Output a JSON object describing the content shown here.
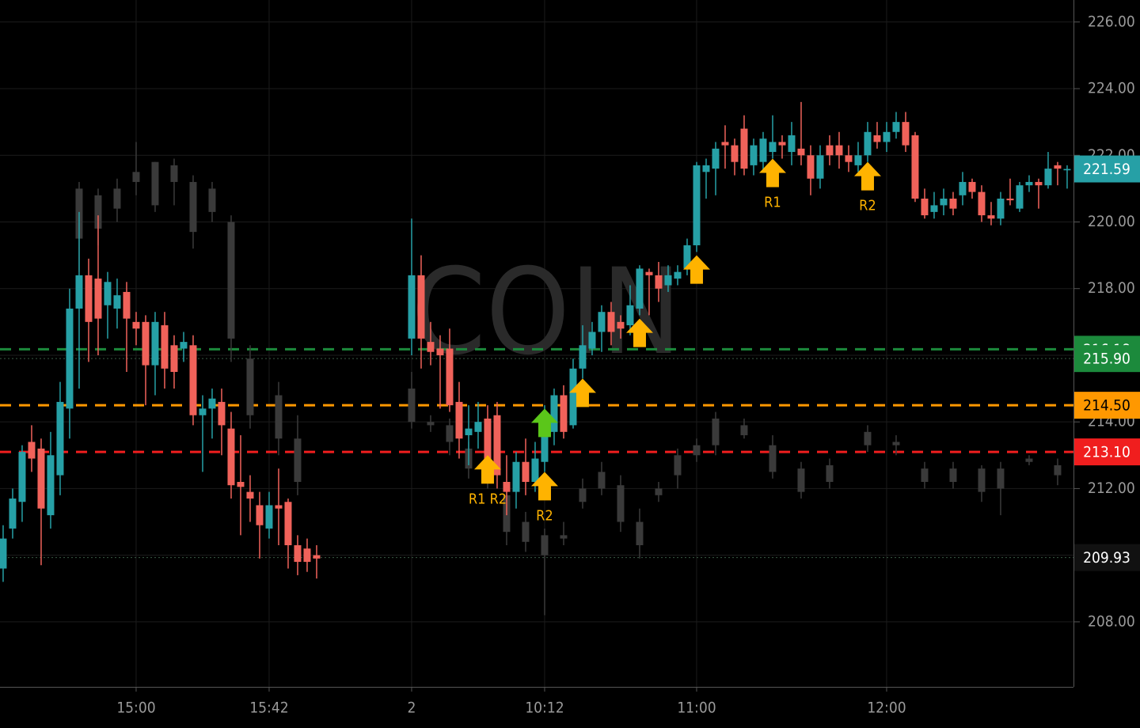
{
  "chart_data": {
    "type": "candlestick",
    "watermark": "COIN",
    "xlim": [
      -0.33,
      112.67
    ],
    "ylim": [
      206.05,
      226.66
    ],
    "xticks": [
      {
        "value": 14,
        "label": "15:00"
      },
      {
        "value": 28,
        "label": "15:42"
      },
      {
        "value": 43,
        "label": "2"
      },
      {
        "value": 57,
        "label": "10:12"
      },
      {
        "value": 73,
        "label": "11:00"
      },
      {
        "value": 93,
        "label": "12:00"
      }
    ],
    "yticks": [
      {
        "value": 208,
        "label": "208.00"
      },
      {
        "value": 210,
        "label": "210.00"
      },
      {
        "value": 212,
        "label": "212.00"
      },
      {
        "value": 214,
        "label": "214.00"
      },
      {
        "value": 216,
        "label": "216.00"
      },
      {
        "value": 218,
        "label": "218.00"
      },
      {
        "value": 220,
        "label": "220.00"
      },
      {
        "value": 222,
        "label": "222.00"
      },
      {
        "value": 224,
        "label": "224.00"
      },
      {
        "value": 226,
        "label": "226.00"
      }
    ],
    "grid": true,
    "series": [
      {
        "up_color": "#3a3a3a",
        "down_color": "#3a3a3a",
        "x": [
          8,
          10,
          12,
          14,
          16,
          18,
          20,
          22,
          24,
          26,
          29,
          31,
          43,
          45,
          47,
          49,
          51,
          53,
          55,
          57,
          59,
          61,
          63,
          65,
          67,
          69,
          71,
          73,
          75,
          78,
          81,
          84,
          87,
          91,
          94,
          97,
          100,
          103,
          105,
          108,
          111
        ],
        "open": [
          219.5,
          220.8,
          220.4,
          221.5,
          220.5,
          221.7,
          221.2,
          220.3,
          220.0,
          215.9,
          214.8,
          213.5,
          215.0,
          214.0,
          213.9,
          213.2,
          212.6,
          211.8,
          211.0,
          210.0,
          210.6,
          211.6,
          212.0,
          212.1,
          211.0,
          211.8,
          212.4,
          213.0,
          213.3,
          213.9,
          213.3,
          212.6,
          212.2,
          213.3,
          213.4,
          212.6,
          212.2,
          212.6,
          212.0,
          212.8,
          212.7
        ],
        "high": [
          221.2,
          221.0,
          221.3,
          222.4,
          221.8,
          221.9,
          221.4,
          221.2,
          220.2,
          216.3,
          215.2,
          214.2,
          215.5,
          214.2,
          214.1,
          213.4,
          212.9,
          212.0,
          211.3,
          210.8,
          211.0,
          212.3,
          212.8,
          212.4,
          211.4,
          212.2,
          213.2,
          213.5,
          214.3,
          214.1,
          213.6,
          212.8,
          212.9,
          213.9,
          213.6,
          212.8,
          212.8,
          212.7,
          212.8,
          213.0,
          212.9
        ],
        "low": [
          218.5,
          219.3,
          220.0,
          220.8,
          220.3,
          220.5,
          219.2,
          220.0,
          215.8,
          213.8,
          213.0,
          211.8,
          213.8,
          213.7,
          213.0,
          212.3,
          212.0,
          210.3,
          210.1,
          208.2,
          210.3,
          211.4,
          211.8,
          210.7,
          209.9,
          211.6,
          212.0,
          212.8,
          213.0,
          213.5,
          212.3,
          211.7,
          212.0,
          213.1,
          213.0,
          212.0,
          212.0,
          211.6,
          211.2,
          212.7,
          212.1
        ],
        "close": [
          221.0,
          219.8,
          221.0,
          221.2,
          221.8,
          221.2,
          219.7,
          221.0,
          216.5,
          214.2,
          213.5,
          212.2,
          214.0,
          213.9,
          213.4,
          212.6,
          212.3,
          210.7,
          210.4,
          210.6,
          210.5,
          212.0,
          212.5,
          211.0,
          210.3,
          212.0,
          213.0,
          213.3,
          214.1,
          213.6,
          212.5,
          211.9,
          212.7,
          213.7,
          213.3,
          212.2,
          212.6,
          211.9,
          212.6,
          212.9,
          212.4
        ]
      },
      {
        "up_color": "#26a0a6",
        "down_color": "#f0625a",
        "x": [
          0,
          1,
          2,
          3,
          4,
          5,
          6,
          7,
          8,
          9,
          10,
          11,
          12,
          13,
          14,
          15,
          16,
          17,
          18,
          19,
          20,
          21,
          22,
          23,
          24,
          25,
          26,
          27,
          28,
          29,
          30,
          31,
          32,
          33,
          43,
          44,
          45,
          46,
          47,
          48,
          49,
          50,
          51,
          52,
          53,
          54,
          55,
          56,
          57,
          58,
          59,
          60,
          61,
          62,
          63,
          64,
          65,
          66,
          67,
          68,
          69,
          70,
          71,
          72,
          73,
          74,
          75,
          76,
          77,
          78,
          79,
          80,
          81,
          82,
          83,
          84,
          85,
          86,
          87,
          88,
          89,
          90,
          91,
          92,
          93,
          94,
          95,
          96,
          97,
          98,
          99,
          100,
          101,
          102,
          103,
          104,
          105,
          106,
          107,
          108,
          109,
          110,
          111,
          112
        ],
        "open": [
          209.6,
          210.8,
          211.6,
          213.4,
          213.2,
          211.2,
          212.4,
          214.4,
          217.4,
          218.4,
          218.3,
          217.5,
          217.4,
          217.9,
          217.0,
          217.0,
          215.7,
          216.9,
          216.3,
          216.2,
          216.3,
          214.2,
          214.4,
          214.6,
          213.8,
          212.2,
          211.9,
          211.5,
          210.8,
          211.5,
          211.6,
          210.3,
          210.2,
          210.0,
          216.5,
          218.4,
          216.4,
          216.2,
          216.2,
          214.6,
          213.6,
          213.7,
          214.1,
          214.2,
          212.2,
          211.9,
          212.8,
          212.2,
          212.8,
          213.7,
          214.8,
          213.9,
          215.6,
          216.2,
          216.7,
          217.3,
          217.0,
          216.9,
          217.4,
          218.5,
          218.4,
          218.1,
          218.3,
          218.6,
          219.3,
          221.5,
          221.6,
          222.4,
          222.3,
          222.8,
          221.7,
          221.8,
          222.1,
          222.4,
          222.1,
          222.2,
          222.0,
          221.3,
          222.3,
          222.3,
          222.0,
          221.7,
          222.0,
          222.6,
          222.4,
          222.7,
          223.0,
          222.6,
          220.7,
          220.3,
          220.5,
          220.7,
          220.8,
          221.2,
          220.9,
          220.2,
          220.1,
          220.7,
          220.4,
          221.1,
          221.2,
          221.1,
          221.7,
          221.55
        ],
        "high": [
          210.9,
          212.0,
          213.3,
          213.9,
          213.5,
          213.7,
          215.2,
          218.0,
          220.3,
          218.9,
          220.2,
          218.5,
          218.3,
          218.2,
          217.3,
          217.2,
          217.3,
          217.3,
          216.6,
          216.7,
          216.6,
          214.8,
          215.0,
          215.0,
          214.3,
          213.6,
          212.4,
          211.9,
          211.9,
          212.6,
          211.7,
          210.6,
          210.5,
          210.3,
          220.1,
          219.0,
          217.0,
          216.6,
          216.8,
          215.2,
          214.5,
          214.6,
          214.5,
          214.6,
          213.0,
          213.1,
          213.5,
          213.4,
          214.5,
          215.0,
          215.1,
          215.9,
          216.9,
          217.0,
          217.5,
          217.6,
          217.2,
          218.1,
          218.7,
          218.6,
          218.8,
          218.7,
          218.7,
          219.5,
          221.8,
          221.9,
          222.4,
          222.9,
          222.5,
          223.2,
          222.5,
          222.7,
          223.2,
          222.6,
          223.0,
          223.6,
          222.3,
          222.3,
          222.6,
          222.7,
          222.3,
          222.4,
          223.0,
          223.0,
          223.0,
          223.3,
          223.3,
          222.7,
          221.0,
          220.9,
          221.0,
          220.9,
          221.5,
          221.3,
          221.1,
          220.6,
          220.9,
          221.3,
          221.2,
          221.4,
          221.3,
          222.1,
          221.8,
          221.7
        ],
        "low": [
          209.2,
          210.5,
          211.0,
          212.5,
          209.7,
          210.8,
          211.8,
          213.5,
          215.0,
          215.8,
          216.0,
          216.5,
          216.8,
          215.5,
          216.3,
          214.5,
          214.8,
          215.0,
          215.0,
          215.8,
          213.9,
          212.5,
          213.5,
          213.0,
          211.7,
          210.6,
          211.0,
          209.9,
          210.5,
          210.3,
          209.6,
          209.4,
          209.5,
          209.3,
          216.0,
          215.6,
          215.7,
          214.4,
          214.3,
          212.9,
          212.7,
          213.2,
          212.5,
          212.0,
          211.2,
          211.4,
          211.8,
          211.9,
          212.5,
          213.3,
          213.5,
          213.8,
          215.3,
          216.0,
          216.1,
          216.3,
          216.5,
          216.6,
          217.2,
          217.2,
          217.6,
          217.9,
          218.1,
          218.4,
          219.1,
          220.7,
          220.8,
          221.6,
          221.4,
          221.4,
          221.4,
          221.5,
          221.9,
          221.9,
          221.7,
          221.7,
          220.8,
          221.0,
          221.7,
          221.6,
          221.5,
          221.5,
          221.8,
          222.2,
          222.1,
          222.5,
          222.1,
          220.6,
          220.1,
          220.1,
          220.2,
          220.2,
          220.5,
          220.7,
          220.0,
          219.9,
          219.9,
          220.5,
          220.3,
          220.9,
          220.4,
          221.0,
          221.1,
          221.0
        ],
        "close": [
          210.5,
          211.7,
          213.1,
          212.9,
          211.4,
          213.0,
          214.6,
          217.4,
          218.4,
          217.0,
          217.1,
          218.2,
          217.8,
          217.1,
          216.8,
          215.7,
          217.0,
          215.6,
          215.5,
          216.4,
          214.2,
          214.4,
          214.7,
          213.9,
          212.1,
          212.05,
          211.7,
          210.9,
          211.5,
          211.4,
          210.3,
          209.8,
          209.8,
          209.9,
          218.4,
          216.5,
          216.1,
          216.0,
          214.5,
          213.5,
          213.8,
          214.0,
          212.8,
          212.4,
          211.9,
          212.8,
          212.2,
          212.9,
          213.7,
          214.8,
          213.7,
          215.6,
          216.3,
          216.7,
          217.3,
          216.7,
          216.8,
          217.5,
          218.6,
          218.4,
          218.0,
          218.4,
          218.5,
          219.3,
          221.7,
          221.7,
          222.2,
          222.3,
          221.8,
          221.6,
          222.3,
          222.5,
          222.4,
          222.3,
          222.6,
          222.0,
          221.3,
          222.0,
          222.0,
          222.0,
          221.8,
          222.0,
          222.7,
          222.4,
          222.7,
          223.0,
          222.3,
          220.7,
          220.2,
          220.5,
          220.7,
          220.4,
          221.2,
          220.9,
          220.2,
          220.1,
          220.7,
          220.65,
          221.1,
          221.2,
          221.1,
          221.6,
          221.6,
          221.59
        ]
      }
    ],
    "price_lines": [
      {
        "value": 221.59,
        "color": "#26a0a6",
        "text_color": "#ffffff",
        "style": "none"
      },
      {
        "value": 216.18,
        "color": "#1c8a3c",
        "text_color": "#ffffff",
        "style": "dashed"
      },
      {
        "value": 215.9,
        "label": "215.90",
        "color": "#1c8a3c",
        "text_color": "#ffffff",
        "style": "dotted"
      },
      {
        "value": 214.5,
        "label": "214.50",
        "color": "#ff9800",
        "text_color": "#000000",
        "style": "dashed"
      },
      {
        "value": 213.1,
        "label": "213.10",
        "color": "#f01e1e",
        "text_color": "#ffffff",
        "style": "dashed"
      },
      {
        "value": 209.93,
        "color": "#111111",
        "text_color": "#ffffff",
        "style": "dotted"
      }
    ],
    "annotations": [
      {
        "x": 51,
        "y": 213.0,
        "label": "R1 R2",
        "color": "#ffb300"
      },
      {
        "x": 57,
        "y": 214.4,
        "color": "#5bc61a"
      },
      {
        "x": 57,
        "y": 212.5,
        "label": "R2",
        "color": "#ffb300"
      },
      {
        "x": 61,
        "y": 215.3,
        "color": "#ffb300"
      },
      {
        "x": 67,
        "y": 217.1,
        "color": "#ffb300"
      },
      {
        "x": 73,
        "y": 219.0,
        "color": "#ffb300"
      },
      {
        "x": 81,
        "y": 221.9,
        "label": "R1",
        "color": "#ffb300"
      },
      {
        "x": 91,
        "y": 221.8,
        "label": "R2",
        "color": "#ffb300"
      }
    ]
  }
}
